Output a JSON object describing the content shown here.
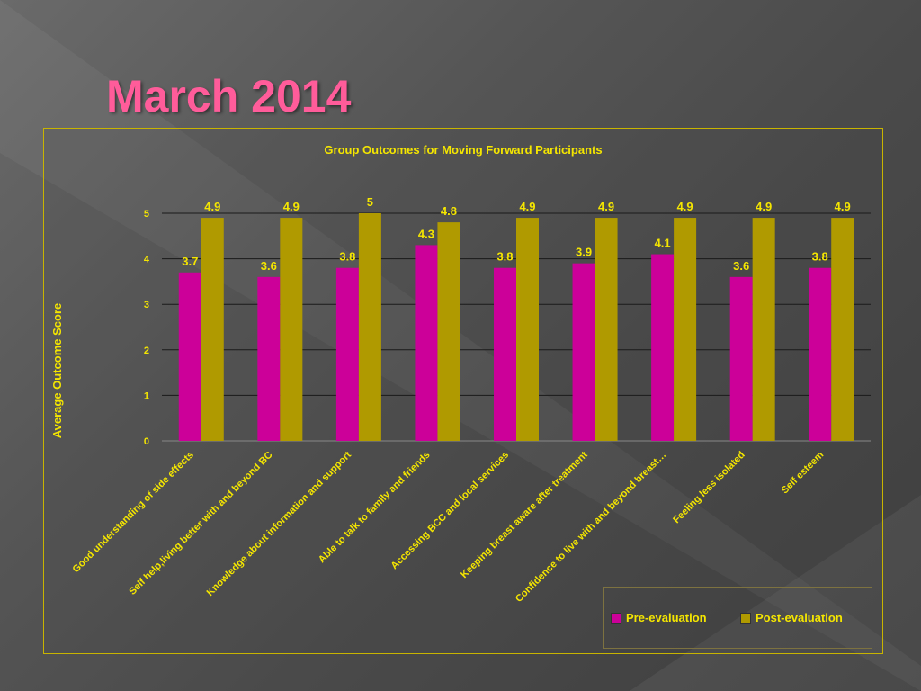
{
  "slide": {
    "title": "March 2014"
  },
  "colors": {
    "title": "#ff5c9a",
    "pre": "#cc0099",
    "post": "#b09a00",
    "text": "#f5e600",
    "frame": "#c8b400"
  },
  "chart_data": {
    "type": "bar",
    "title": "Group Outcomes for Moving Forward Participants",
    "xlabel": "",
    "ylabel": "Average Outcome Score",
    "ylim": [
      0,
      5
    ],
    "yticks": [
      0,
      1,
      2,
      3,
      4,
      5
    ],
    "grid": true,
    "legend_position": "bottom-right",
    "categories": [
      "Good understanding of side effects",
      "Self help,living better with and beyond BC",
      "Knowledge about information and support",
      "Able to talk to family and friends",
      "Accessing BCC and local services",
      "Keeping breast aware after treatment",
      "Confidence to live with and beyond breast…",
      "Feeling less isolated",
      "Self esteem"
    ],
    "series": [
      {
        "name": "Pre-evaluation",
        "color": "#cc0099",
        "values": [
          3.7,
          3.6,
          3.8,
          4.3,
          3.8,
          3.9,
          4.1,
          3.6,
          3.8
        ]
      },
      {
        "name": "Post-evaluation",
        "color": "#b09a00",
        "values": [
          4.9,
          4.9,
          5,
          4.8,
          4.9,
          4.9,
          4.9,
          4.9,
          4.9
        ]
      }
    ]
  }
}
